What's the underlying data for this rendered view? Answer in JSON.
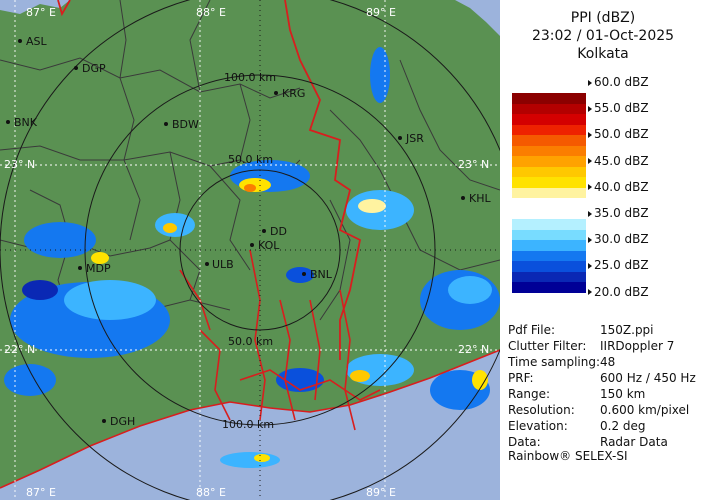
{
  "map": {
    "colors": {
      "land": "#5a9152",
      "sea": "#9cb3dc",
      "ring": "#1a1a1a",
      "border": "#d81e1e",
      "district": "#3a3a3a"
    },
    "grid_labels": [
      "87° E",
      "88° E",
      "89° E",
      "23° N",
      "22° N",
      "87° E",
      "88° E",
      "89° E"
    ],
    "range_labels": [
      "100.0 km",
      "50.0 km",
      "50.0 km",
      "100.0 km"
    ],
    "cities": [
      "ASL",
      "DGP",
      "BNK",
      "BDW",
      "KRG",
      "JSR",
      "KHL",
      "DD",
      "KOL",
      "ULB",
      "MDP",
      "BNL",
      "DGH"
    ]
  },
  "panel": {
    "title": "PPI (dBZ)",
    "datetime": "23:02 / 01-Oct-2025",
    "station": "Kolkata",
    "scale_ticks": [
      "60.0 dBZ",
      "55.0 dBZ",
      "50.0 dBZ",
      "45.0 dBZ",
      "40.0 dBZ",
      "35.0 dBZ",
      "30.0 dBZ",
      "25.0 dBZ",
      "20.0 dBZ"
    ],
    "scale_colors": [
      "#ffffff",
      "#ffffff",
      "#8b0000",
      "#b30000",
      "#d40000",
      "#ee2200",
      "#f55a00",
      "#fb7e00",
      "#ffa200",
      "#ffc800",
      "#ffe200",
      "#fff3a0",
      "#ffffff",
      "#ffffff",
      "#b4f0ff",
      "#78dcff",
      "#3cb4ff",
      "#1478f0",
      "#0a50dc",
      "#0a28b4",
      "#000096"
    ],
    "info": [
      {
        "key": "Pdf File:",
        "value": "150Z.ppi"
      },
      {
        "key": "Clutter Filter:",
        "value": "IIRDoppler 7"
      },
      {
        "key": "Time sampling:",
        "value": "48"
      },
      {
        "key": "PRF:",
        "value": "600 Hz / 450 Hz"
      },
      {
        "key": "Range:",
        "value": "150 km"
      },
      {
        "key": "Resolution:",
        "value": "0.600 km/pixel"
      },
      {
        "key": "Elevation:",
        "value": "0.2 deg"
      },
      {
        "key": "Data:",
        "value": "Radar Data"
      }
    ],
    "footer": "Rainbow® SELEX-SI"
  }
}
